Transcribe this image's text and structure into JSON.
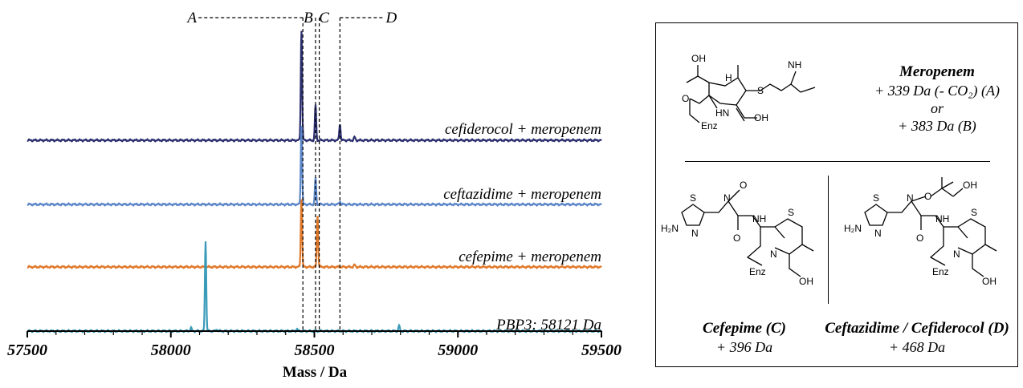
{
  "chart_data": {
    "type": "line",
    "xlabel": "Mass / Da",
    "ylabel": "",
    "xlim": [
      57500,
      59500
    ],
    "x_ticks": [
      "57500",
      "58000",
      "58500",
      "59000",
      "59500"
    ],
    "grid": false,
    "series": [
      {
        "name": "cefiderocol + meropenem",
        "color": "#2c2f6e",
        "baseline": 3,
        "peaks": [
          {
            "x": 58455,
            "h": 1.0
          },
          {
            "x": 58504,
            "h": 0.32
          },
          {
            "x": 58589,
            "h": 0.15
          },
          {
            "x": 58640,
            "h": 0.03
          }
        ]
      },
      {
        "name": "ceftazidime + meropenem",
        "color": "#5b86c8",
        "baseline": 2,
        "peaks": [
          {
            "x": 58455,
            "h": 0.72
          },
          {
            "x": 58504,
            "h": 0.24
          },
          {
            "x": 58589,
            "h": 0.03
          }
        ]
      },
      {
        "name": "cefepime + meropenem",
        "color": "#e0782a",
        "baseline": 1,
        "peaks": [
          {
            "x": 58455,
            "h": 0.62
          },
          {
            "x": 58511,
            "h": 0.47
          },
          {
            "x": 58640,
            "h": 0.02
          }
        ]
      },
      {
        "name": "PBP3: 58121 Da",
        "color": "#3a9bb8",
        "baseline": 0,
        "peaks": [
          {
            "x": 58121,
            "h": 0.82
          },
          {
            "x": 58070,
            "h": 0.03
          },
          {
            "x": 58160,
            "h": 0.02
          },
          {
            "x": 58795,
            "h": 0.05
          },
          {
            "x": 58440,
            "h": 0.02
          }
        ]
      }
    ],
    "markers": [
      {
        "label": "A",
        "x": 58460
      },
      {
        "label": "B",
        "x": 58504
      },
      {
        "label": "C",
        "x": 58517
      },
      {
        "label": "D",
        "x": 58589
      }
    ]
  },
  "panel": {
    "meropenem": {
      "name": "Meropenem",
      "line1": "+ 339 Da (- CO₂) (A)",
      "line2": "or",
      "line3": "+ 383 Da (B)"
    },
    "cefepime": {
      "name": "Cefepime (C)",
      "note": "+ 396 Da"
    },
    "ceftazidime": {
      "name": "Ceftazidime / Cefiderocol (D)",
      "note": "+ 468 Da"
    },
    "atoms": {
      "oh": "OH",
      "h": "H",
      "n": "N",
      "nh": "NH",
      "hn": "HN",
      "s": "S",
      "o": "O",
      "enz": "Enz",
      "h2n": "H₂N"
    }
  }
}
